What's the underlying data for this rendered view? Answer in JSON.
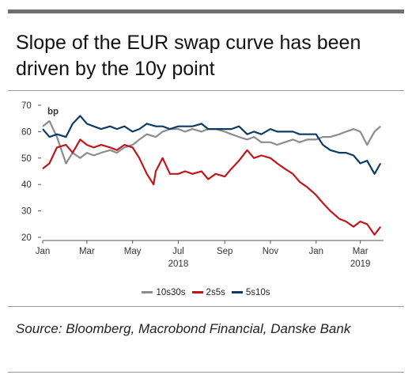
{
  "title": "Slope of the EUR swap curve has been driven by the 10y point",
  "source": "Source: Bloomberg, Macrobond Financial, Danske Bank",
  "chart_data": {
    "type": "line",
    "unit_label": "bp",
    "ylim": [
      20,
      70
    ],
    "yticks": [
      20,
      30,
      40,
      50,
      60,
      70
    ],
    "xlim": [
      "2018-01-01",
      "2019-04-01"
    ],
    "xticks": [
      {
        "date": "2018-01-01",
        "label": "Jan",
        "year": ""
      },
      {
        "date": "2018-03-01",
        "label": "Mar",
        "year": ""
      },
      {
        "date": "2018-05-01",
        "label": "May",
        "year": ""
      },
      {
        "date": "2018-07-01",
        "label": "Jul",
        "year": "2018"
      },
      {
        "date": "2018-09-01",
        "label": "Sep",
        "year": ""
      },
      {
        "date": "2018-11-01",
        "label": "Nov",
        "year": ""
      },
      {
        "date": "2019-01-01",
        "label": "Jan",
        "year": ""
      },
      {
        "date": "2019-03-01",
        "label": "Mar",
        "year": "2019"
      }
    ],
    "grid": false,
    "legend_position": "bottom",
    "series": [
      {
        "name": "10s30s",
        "color": "#8c8c8c",
        "points": [
          [
            "2018-01-01",
            62
          ],
          [
            "2018-01-10",
            64
          ],
          [
            "2018-01-20",
            58
          ],
          [
            "2018-02-01",
            48
          ],
          [
            "2018-02-10",
            52
          ],
          [
            "2018-02-20",
            50
          ],
          [
            "2018-03-01",
            52
          ],
          [
            "2018-03-10",
            51
          ],
          [
            "2018-03-20",
            52
          ],
          [
            "2018-04-01",
            53
          ],
          [
            "2018-04-10",
            52
          ],
          [
            "2018-04-20",
            54
          ],
          [
            "2018-05-01",
            55
          ],
          [
            "2018-05-10",
            57
          ],
          [
            "2018-05-20",
            59
          ],
          [
            "2018-06-01",
            58
          ],
          [
            "2018-06-10",
            60
          ],
          [
            "2018-06-20",
            61
          ],
          [
            "2018-07-01",
            61
          ],
          [
            "2018-07-10",
            60
          ],
          [
            "2018-07-20",
            61
          ],
          [
            "2018-08-01",
            60
          ],
          [
            "2018-08-10",
            61
          ],
          [
            "2018-08-20",
            61
          ],
          [
            "2018-09-01",
            60
          ],
          [
            "2018-09-10",
            59
          ],
          [
            "2018-09-20",
            58
          ],
          [
            "2018-10-01",
            57
          ],
          [
            "2018-10-10",
            58
          ],
          [
            "2018-10-20",
            56
          ],
          [
            "2018-11-01",
            56
          ],
          [
            "2018-11-10",
            55
          ],
          [
            "2018-11-20",
            56
          ],
          [
            "2018-12-01",
            57
          ],
          [
            "2018-12-10",
            56
          ],
          [
            "2018-12-20",
            57
          ],
          [
            "2019-01-01",
            57
          ],
          [
            "2019-01-10",
            58
          ],
          [
            "2019-01-20",
            58
          ],
          [
            "2019-02-01",
            59
          ],
          [
            "2019-02-10",
            60
          ],
          [
            "2019-02-20",
            61
          ],
          [
            "2019-03-01",
            60
          ],
          [
            "2019-03-10",
            55
          ],
          [
            "2019-03-20",
            60
          ],
          [
            "2019-03-28",
            62
          ]
        ]
      },
      {
        "name": "2s5s",
        "color": "#c0161c",
        "points": [
          [
            "2018-01-01",
            46
          ],
          [
            "2018-01-10",
            48
          ],
          [
            "2018-01-20",
            54
          ],
          [
            "2018-02-01",
            55
          ],
          [
            "2018-02-10",
            52
          ],
          [
            "2018-02-20",
            57
          ],
          [
            "2018-03-01",
            55
          ],
          [
            "2018-03-10",
            54
          ],
          [
            "2018-03-20",
            55
          ],
          [
            "2018-04-01",
            54
          ],
          [
            "2018-04-10",
            53
          ],
          [
            "2018-04-20",
            55
          ],
          [
            "2018-05-01",
            54
          ],
          [
            "2018-05-10",
            50
          ],
          [
            "2018-05-20",
            44
          ],
          [
            "2018-05-29",
            40
          ],
          [
            "2018-06-01",
            45
          ],
          [
            "2018-06-10",
            50
          ],
          [
            "2018-06-20",
            44
          ],
          [
            "2018-07-01",
            44
          ],
          [
            "2018-07-10",
            45
          ],
          [
            "2018-07-20",
            44
          ],
          [
            "2018-08-01",
            45
          ],
          [
            "2018-08-10",
            42
          ],
          [
            "2018-08-20",
            44
          ],
          [
            "2018-09-01",
            43
          ],
          [
            "2018-09-10",
            46
          ],
          [
            "2018-09-20",
            49
          ],
          [
            "2018-10-01",
            53
          ],
          [
            "2018-10-10",
            50
          ],
          [
            "2018-10-20",
            51
          ],
          [
            "2018-11-01",
            50
          ],
          [
            "2018-11-10",
            48
          ],
          [
            "2018-11-20",
            46
          ],
          [
            "2018-12-01",
            44
          ],
          [
            "2018-12-10",
            41
          ],
          [
            "2018-12-20",
            39
          ],
          [
            "2019-01-01",
            36
          ],
          [
            "2019-01-10",
            33
          ],
          [
            "2019-01-20",
            30
          ],
          [
            "2019-02-01",
            27
          ],
          [
            "2019-02-10",
            26
          ],
          [
            "2019-02-20",
            24
          ],
          [
            "2019-03-01",
            26
          ],
          [
            "2019-03-10",
            25
          ],
          [
            "2019-03-20",
            21
          ],
          [
            "2019-03-28",
            24
          ]
        ]
      },
      {
        "name": "5s10s",
        "color": "#0e3a66",
        "points": [
          [
            "2018-01-01",
            61
          ],
          [
            "2018-01-10",
            58
          ],
          [
            "2018-01-20",
            59
          ],
          [
            "2018-02-01",
            58
          ],
          [
            "2018-02-10",
            63
          ],
          [
            "2018-02-20",
            66
          ],
          [
            "2018-03-01",
            63
          ],
          [
            "2018-03-10",
            62
          ],
          [
            "2018-03-20",
            61
          ],
          [
            "2018-04-01",
            62
          ],
          [
            "2018-04-10",
            61
          ],
          [
            "2018-04-20",
            62
          ],
          [
            "2018-05-01",
            60
          ],
          [
            "2018-05-10",
            61
          ],
          [
            "2018-05-20",
            63
          ],
          [
            "2018-06-01",
            62
          ],
          [
            "2018-06-10",
            62
          ],
          [
            "2018-06-20",
            61
          ],
          [
            "2018-07-01",
            62
          ],
          [
            "2018-07-10",
            62
          ],
          [
            "2018-07-20",
            62
          ],
          [
            "2018-08-01",
            63
          ],
          [
            "2018-08-10",
            61
          ],
          [
            "2018-08-20",
            61
          ],
          [
            "2018-09-01",
            61
          ],
          [
            "2018-09-10",
            61
          ],
          [
            "2018-09-20",
            62
          ],
          [
            "2018-10-01",
            59
          ],
          [
            "2018-10-10",
            60
          ],
          [
            "2018-10-20",
            59
          ],
          [
            "2018-11-01",
            61
          ],
          [
            "2018-11-10",
            60
          ],
          [
            "2018-11-20",
            60
          ],
          [
            "2018-12-01",
            60
          ],
          [
            "2018-12-10",
            59
          ],
          [
            "2018-12-20",
            59
          ],
          [
            "2019-01-01",
            59
          ],
          [
            "2019-01-10",
            55
          ],
          [
            "2019-01-20",
            53
          ],
          [
            "2019-02-01",
            52
          ],
          [
            "2019-02-10",
            52
          ],
          [
            "2019-02-20",
            51
          ],
          [
            "2019-03-01",
            48
          ],
          [
            "2019-03-10",
            49
          ],
          [
            "2019-03-20",
            44
          ],
          [
            "2019-03-28",
            48
          ]
        ]
      }
    ]
  }
}
